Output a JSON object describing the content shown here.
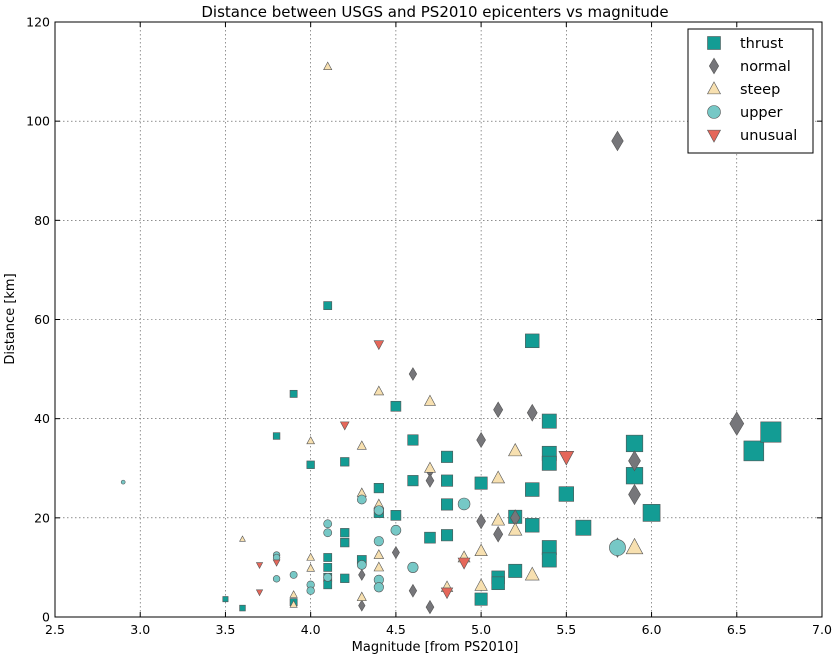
{
  "chart_data": {
    "type": "scatter",
    "title": "Distance between USGS and PS2010 epicenters vs magnitude",
    "xlabel": "Magnitude [from PS2010]",
    "ylabel": "Distance [km]",
    "xlim": [
      2.5,
      7.0
    ],
    "ylim": [
      0,
      120
    ],
    "xticks": [
      2.5,
      3.0,
      3.5,
      4.0,
      4.5,
      5.0,
      5.5,
      6.0,
      6.5,
      7.0
    ],
    "xtick_labels": [
      "2.5",
      "3.0",
      "3.5",
      "4.0",
      "4.5",
      "5.0",
      "5.5",
      "6.0",
      "6.5",
      "7.0"
    ],
    "yticks": [
      0,
      20,
      40,
      60,
      80,
      100,
      120
    ],
    "ytick_labels": [
      "0",
      "20",
      "40",
      "60",
      "80",
      "100",
      "120"
    ],
    "grid": true,
    "legend_position": "top-right",
    "marker_size": "scales with magnitude",
    "series": [
      {
        "name": "thrust",
        "marker": "square",
        "color": "#139c94",
        "points": [
          [
            3.5,
            3.6
          ],
          [
            3.6,
            1.8
          ],
          [
            3.8,
            36.5
          ],
          [
            3.9,
            45
          ],
          [
            3.9,
            3
          ],
          [
            4.0,
            30.7
          ],
          [
            4.1,
            62.8
          ],
          [
            4.1,
            12
          ],
          [
            4.1,
            10
          ],
          [
            4.1,
            8
          ],
          [
            4.1,
            6.5
          ],
          [
            4.2,
            31.3
          ],
          [
            4.2,
            17
          ],
          [
            4.2,
            15
          ],
          [
            4.2,
            7.8
          ],
          [
            4.3,
            11.5
          ],
          [
            4.4,
            26
          ],
          [
            4.4,
            21
          ],
          [
            4.5,
            42.5
          ],
          [
            4.5,
            20.5
          ],
          [
            4.6,
            35.7
          ],
          [
            4.6,
            27.5
          ],
          [
            4.7,
            16
          ],
          [
            4.8,
            32.3
          ],
          [
            4.8,
            27.5
          ],
          [
            4.8,
            22.7
          ],
          [
            4.8,
            16.5
          ],
          [
            5.0,
            27
          ],
          [
            5.0,
            3.6
          ],
          [
            5.1,
            8
          ],
          [
            5.1,
            6.8
          ],
          [
            5.2,
            20.2
          ],
          [
            5.2,
            9.3
          ],
          [
            5.3,
            55.7
          ],
          [
            5.3,
            25.7
          ],
          [
            5.3,
            18.5
          ],
          [
            5.4,
            39.5
          ],
          [
            5.4,
            33
          ],
          [
            5.4,
            31
          ],
          [
            5.4,
            14
          ],
          [
            5.4,
            11.5
          ],
          [
            5.5,
            24.8
          ],
          [
            5.6,
            18
          ],
          [
            5.9,
            35
          ],
          [
            5.9,
            28.5
          ],
          [
            6.0,
            21
          ],
          [
            6.6,
            33.5
          ],
          [
            6.7,
            37.3
          ]
        ]
      },
      {
        "name": "normal",
        "marker": "diamond",
        "color": "#76767a",
        "points": [
          [
            4.3,
            8.5
          ],
          [
            4.3,
            2.3
          ],
          [
            4.5,
            13
          ],
          [
            4.6,
            49
          ],
          [
            4.6,
            5.3
          ],
          [
            4.7,
            29.5
          ],
          [
            4.7,
            27.5
          ],
          [
            4.7,
            2
          ],
          [
            5.0,
            35.7
          ],
          [
            5.0,
            19.3
          ],
          [
            5.1,
            41.8
          ],
          [
            5.1,
            16.7
          ],
          [
            5.2,
            20
          ],
          [
            5.3,
            41.2
          ],
          [
            5.8,
            96
          ],
          [
            5.8,
            14
          ],
          [
            5.9,
            31.5
          ],
          [
            5.9,
            24.7
          ],
          [
            6.5,
            39
          ]
        ]
      },
      {
        "name": "steep",
        "marker": "triangle-up",
        "color": "#f7e0b0",
        "points": [
          [
            3.6,
            15.7
          ],
          [
            3.9,
            4.5
          ],
          [
            3.9,
            2.5
          ],
          [
            4.0,
            35.5
          ],
          [
            4.0,
            12
          ],
          [
            4.0,
            9.8
          ],
          [
            4.1,
            111
          ],
          [
            4.3,
            34.5
          ],
          [
            4.3,
            25
          ],
          [
            4.3,
            4
          ],
          [
            4.4,
            45.5
          ],
          [
            4.4,
            22.7
          ],
          [
            4.4,
            12.5
          ],
          [
            4.4,
            10
          ],
          [
            4.7,
            43.5
          ],
          [
            4.7,
            30
          ],
          [
            4.8,
            6
          ],
          [
            4.9,
            12
          ],
          [
            5.0,
            13.3
          ],
          [
            5.0,
            6.3
          ],
          [
            5.1,
            28
          ],
          [
            5.1,
            19.5
          ],
          [
            5.2,
            33.5
          ],
          [
            5.2,
            17.5
          ],
          [
            5.3,
            8.5
          ],
          [
            5.9,
            14
          ]
        ]
      },
      {
        "name": "upper",
        "marker": "circle",
        "color": "#76c8c6",
        "points": [
          [
            2.9,
            27.2
          ],
          [
            3.8,
            12.5
          ],
          [
            3.8,
            12
          ],
          [
            3.8,
            7.7
          ],
          [
            3.9,
            8.5
          ],
          [
            4.0,
            6.5
          ],
          [
            4.0,
            5.3
          ],
          [
            4.1,
            18.8
          ],
          [
            4.1,
            17
          ],
          [
            4.1,
            8
          ],
          [
            4.3,
            23.7
          ],
          [
            4.3,
            10.5
          ],
          [
            4.4,
            21.5
          ],
          [
            4.4,
            15.3
          ],
          [
            4.4,
            7.5
          ],
          [
            4.4,
            6
          ],
          [
            4.5,
            17.5
          ],
          [
            4.6,
            10
          ],
          [
            4.9,
            22.8
          ],
          [
            5.8,
            14
          ]
        ]
      },
      {
        "name": "unusual",
        "marker": "triangle-down",
        "color": "#e5675a",
        "points": [
          [
            3.7,
            10.5
          ],
          [
            3.7,
            5
          ],
          [
            3.8,
            11
          ],
          [
            4.2,
            38.7
          ],
          [
            4.4,
            55
          ],
          [
            4.8,
            5
          ],
          [
            4.9,
            11
          ],
          [
            5.5,
            32.3
          ]
        ]
      }
    ]
  }
}
